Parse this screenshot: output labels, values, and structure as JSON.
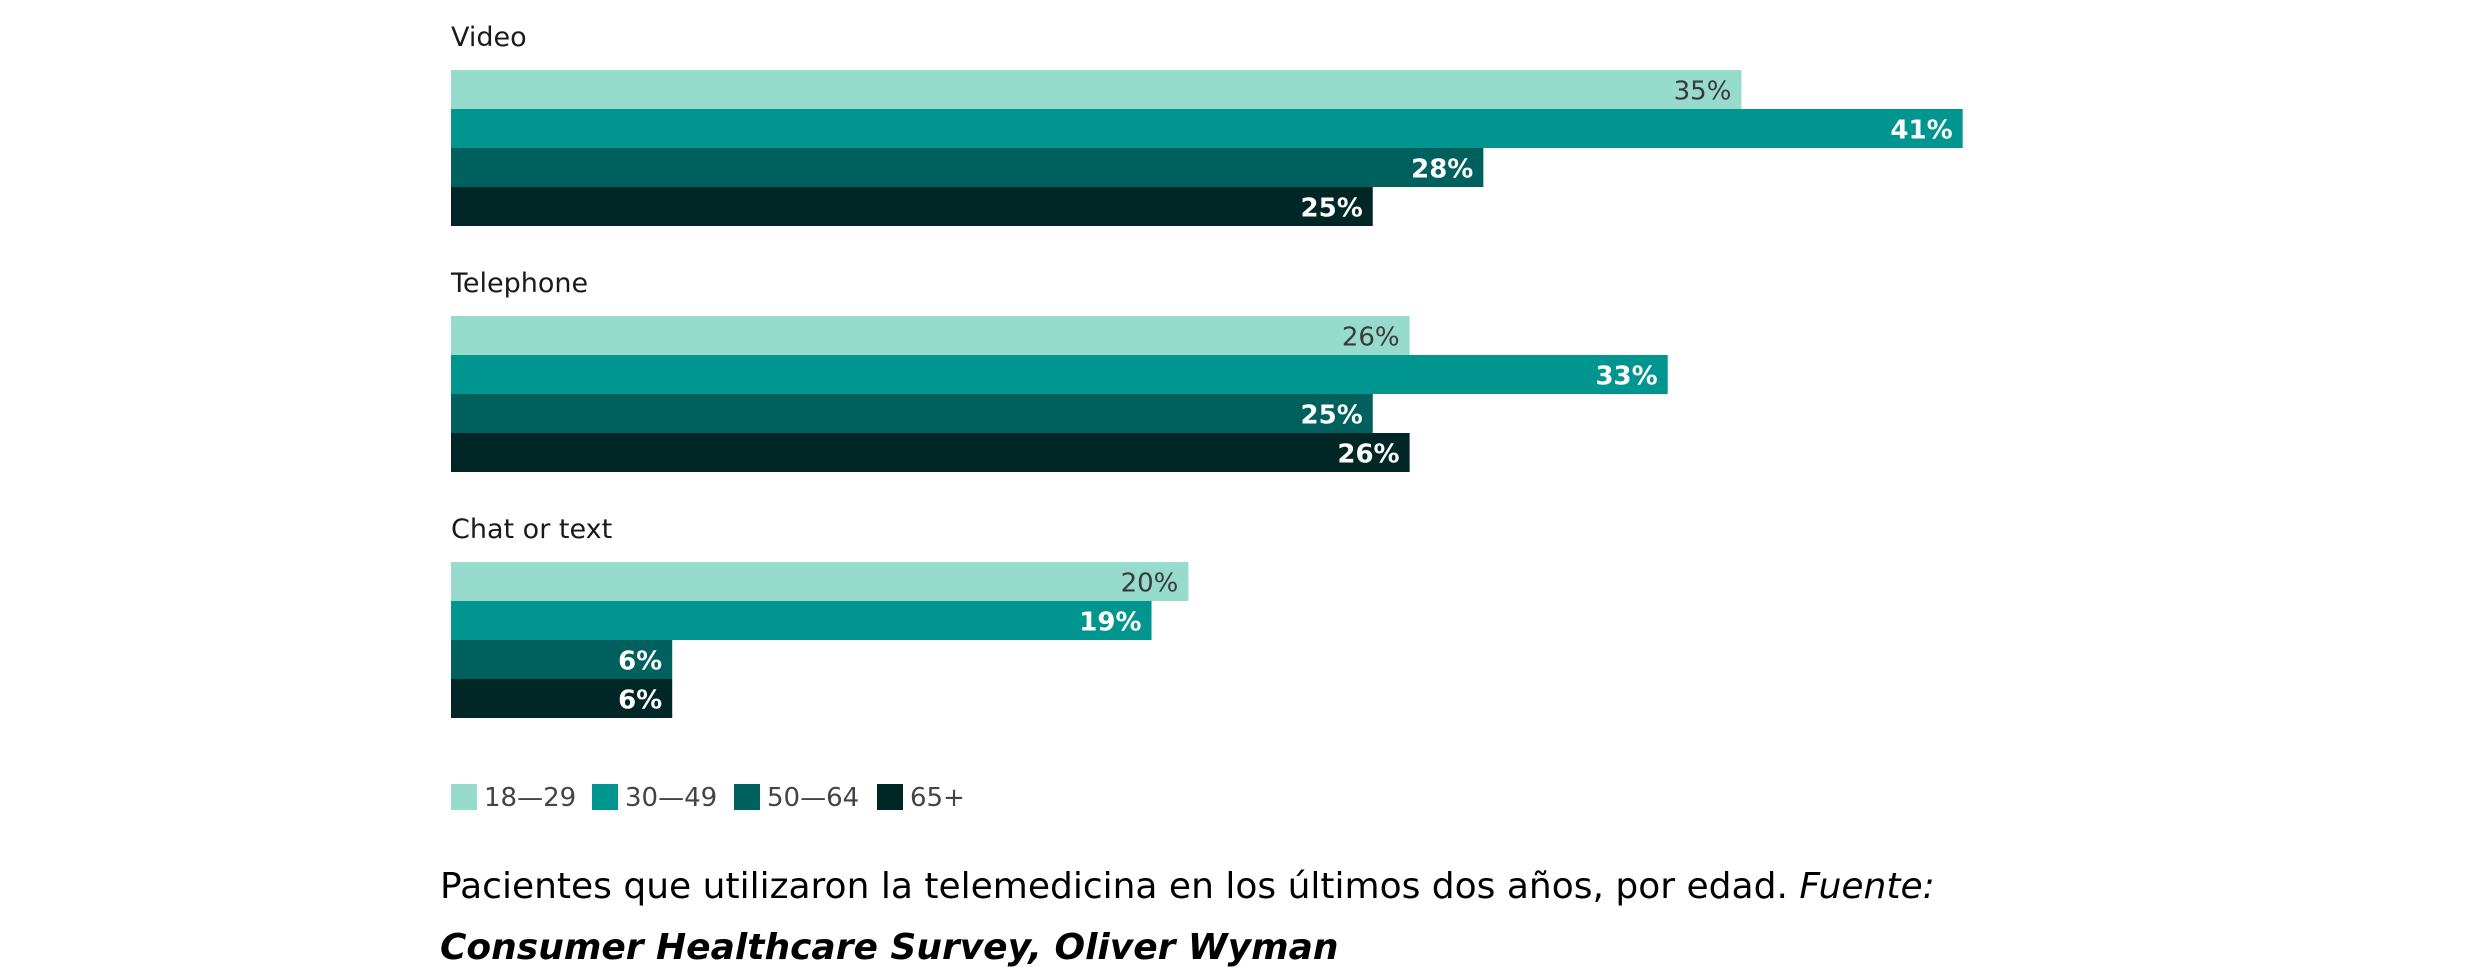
{
  "chart_data": {
    "type": "bar",
    "orientation": "horizontal",
    "grouping": "grouped",
    "categories": [
      "Video",
      "Telephone",
      "Chat or text"
    ],
    "series": [
      {
        "name": "18—29",
        "values": [
          35,
          26,
          20
        ],
        "labels": [
          "35%",
          "26%",
          "20%"
        ],
        "color": "#97dbcc",
        "label_color": "#3a3a3a"
      },
      {
        "name": "30—49",
        "values": [
          41,
          33,
          19
        ],
        "labels": [
          "41%",
          "33%",
          "19%"
        ],
        "color": "#00958f",
        "label_color": "#ffffff"
      },
      {
        "name": "50—64",
        "values": [
          28,
          25,
          6
        ],
        "labels": [
          "28%",
          "25%",
          "6%"
        ],
        "color": "#00605e",
        "label_color": "#ffffff"
      },
      {
        "name": "65+",
        "values": [
          25,
          26,
          6
        ],
        "labels": [
          "25%",
          "26%",
          "6%"
        ],
        "color": "#002625",
        "label_color": "#ffffff"
      }
    ],
    "unit": "%",
    "grid": false,
    "legend_position": "bottom-left"
  },
  "caption": {
    "text": "Pacientes que utilizaron la telemedicina en los últimos dos años, por edad.",
    "source_label": "Fuente:",
    "source": "Consumer Healthcare Survey, Oliver Wyman"
  }
}
